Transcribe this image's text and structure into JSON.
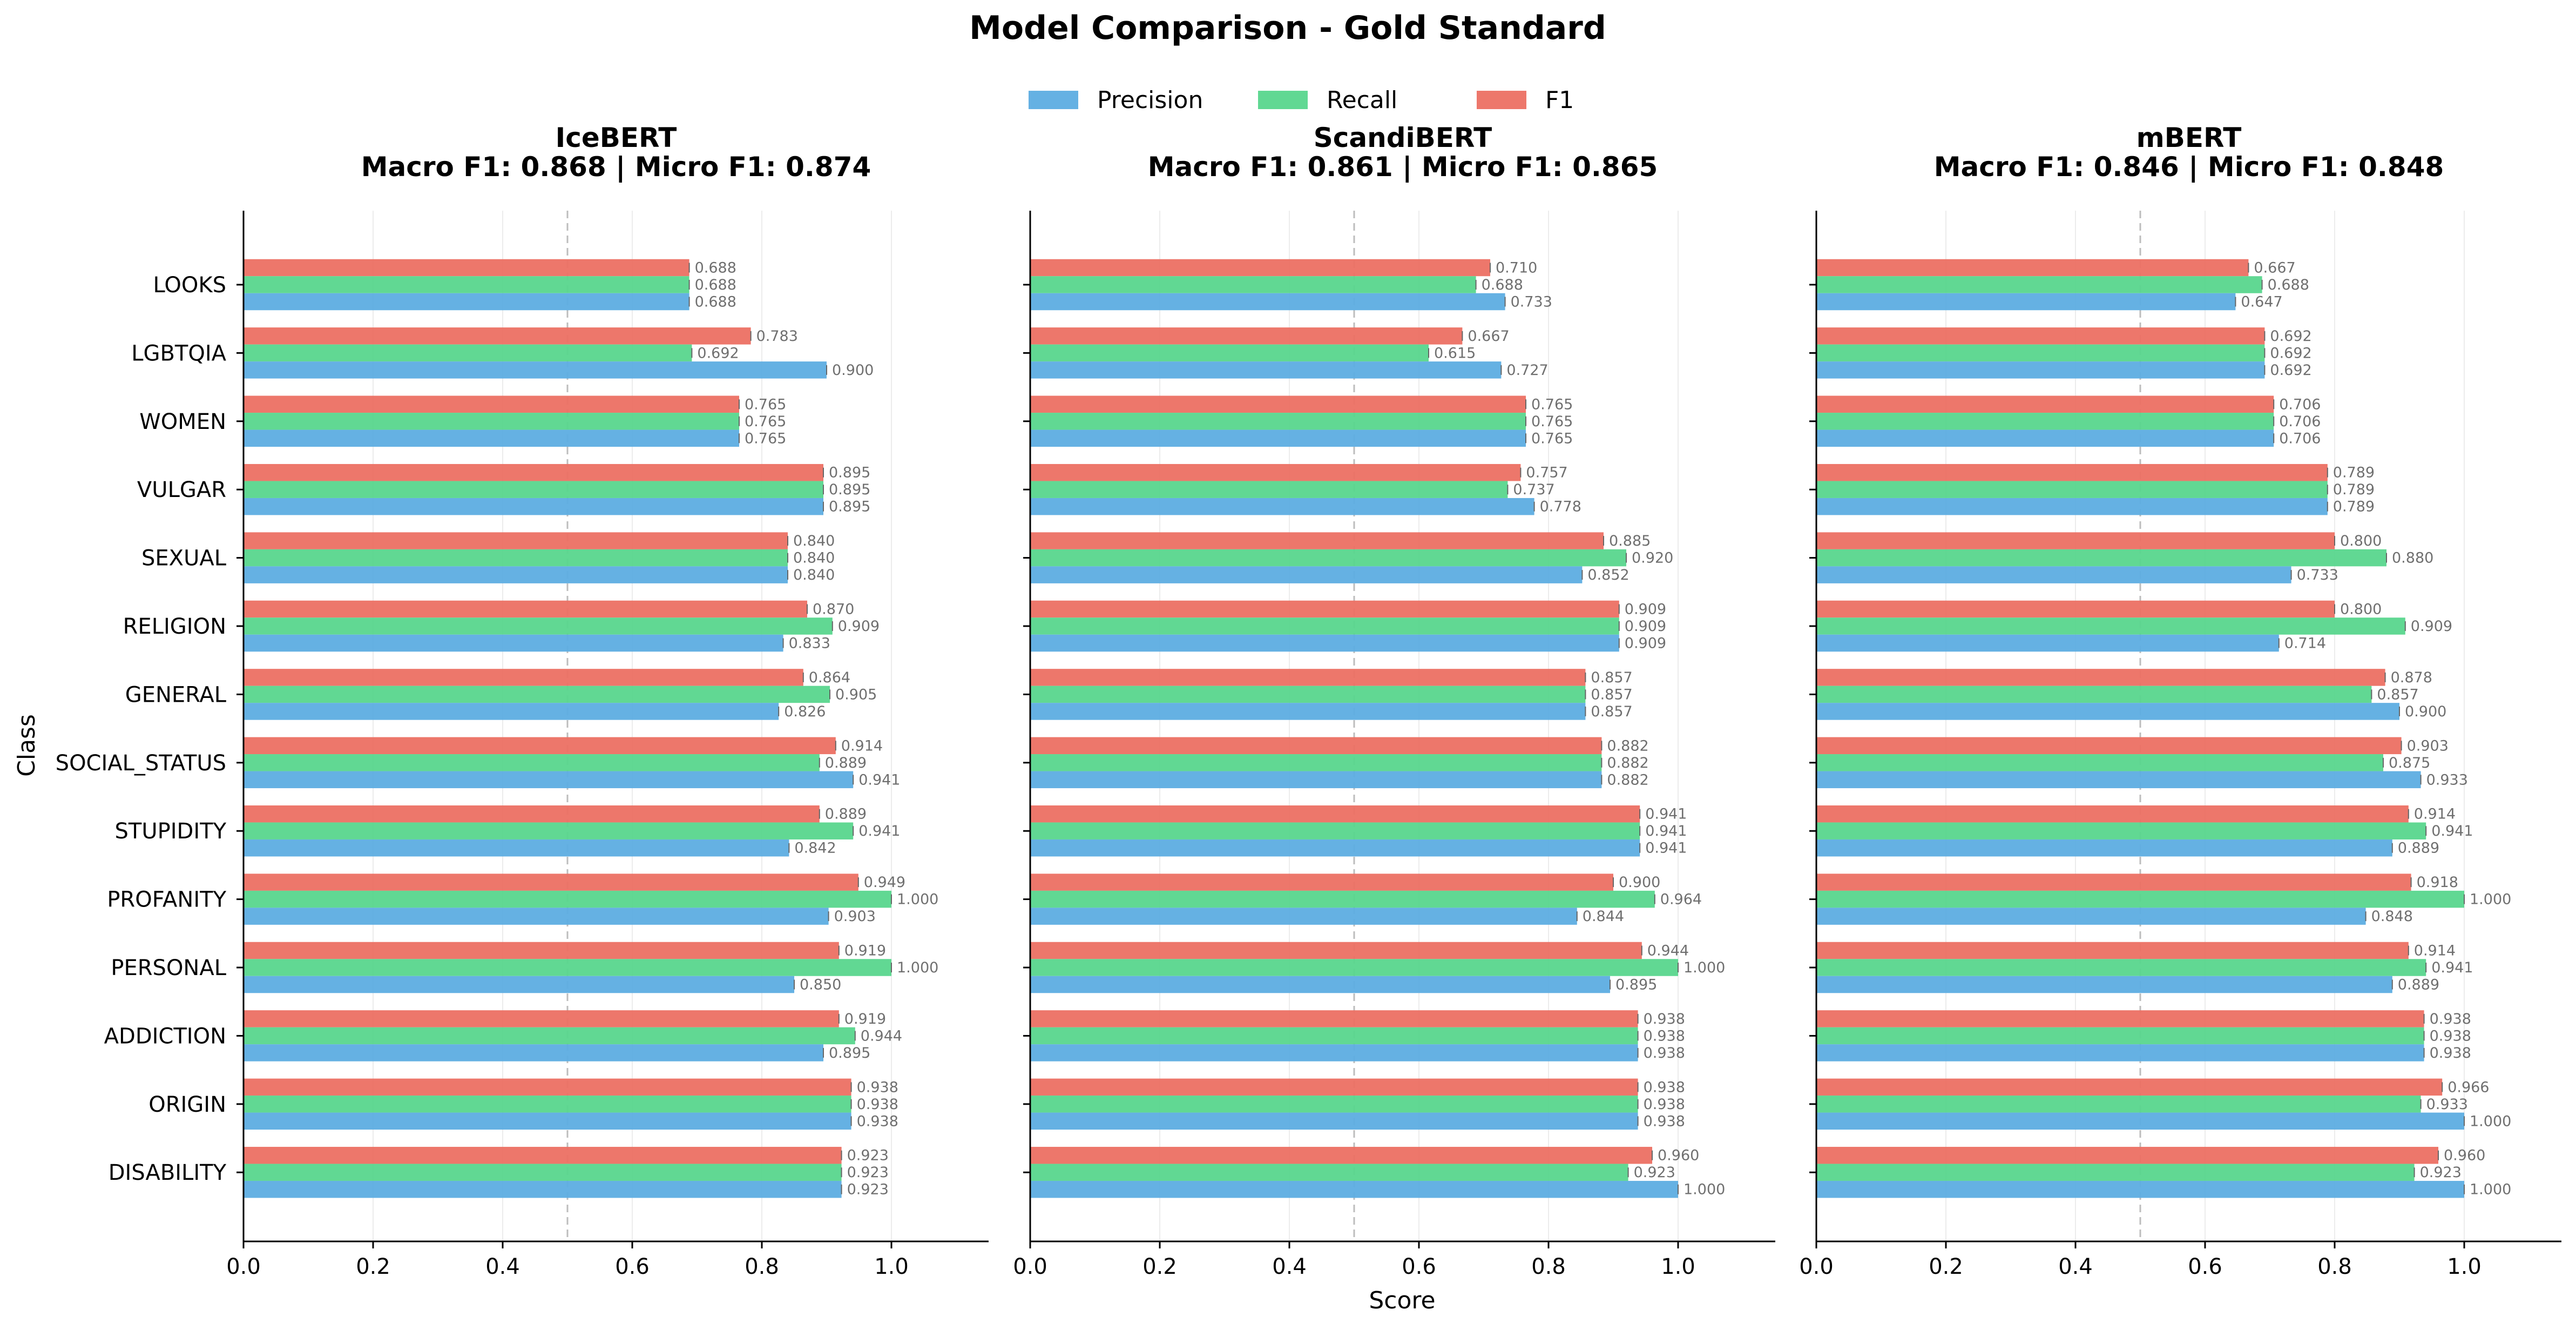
{
  "figure": {
    "title": "Model Comparison - Gold Standard",
    "ylabel": "Class",
    "xlabel": "Score"
  },
  "legend": {
    "position": "top-center",
    "items": [
      {
        "name": "Precision",
        "color": "#5DADE2"
      },
      {
        "name": "Recall",
        "color": "#58D68D"
      },
      {
        "name": "F1",
        "color": "#EC7063"
      }
    ]
  },
  "chart_data": [
    {
      "type": "bar",
      "orientation": "horizontal",
      "model": "IceBERT",
      "title_line1": "IceBERT",
      "title_line2": "Macro F1: 0.868 | Micro F1: 0.874",
      "xlim": [
        0,
        1.15
      ],
      "xticks": [
        "0.0",
        "0.2",
        "0.4",
        "0.6",
        "0.8",
        "1.0"
      ],
      "reference_line": 0.5,
      "categories": [
        "LOOKS",
        "LGBTQIA",
        "WOMEN",
        "VULGAR",
        "SEXUAL",
        "RELIGION",
        "GENERAL",
        "SOCIAL_STATUS",
        "STUPIDITY",
        "PROFANITY",
        "PERSONAL",
        "ADDICTION",
        "ORIGIN",
        "DISABILITY"
      ],
      "series": [
        {
          "name": "Precision",
          "values": [
            0.688,
            0.9,
            0.765,
            0.895,
            0.84,
            0.833,
            0.826,
            0.941,
            0.842,
            0.903,
            0.85,
            0.895,
            0.938,
            0.923
          ]
        },
        {
          "name": "Recall",
          "values": [
            0.688,
            0.692,
            0.765,
            0.895,
            0.84,
            0.909,
            0.905,
            0.889,
            0.941,
            1.0,
            1.0,
            0.944,
            0.938,
            0.923
          ]
        },
        {
          "name": "F1",
          "values": [
            0.688,
            0.783,
            0.765,
            0.895,
            0.84,
            0.87,
            0.864,
            0.914,
            0.889,
            0.949,
            0.919,
            0.919,
            0.938,
            0.923
          ]
        }
      ]
    },
    {
      "type": "bar",
      "orientation": "horizontal",
      "model": "ScandiBERT",
      "title_line1": "ScandiBERT",
      "title_line2": "Macro F1: 0.861 | Micro F1: 0.865",
      "xlim": [
        0,
        1.15
      ],
      "xticks": [
        "0.0",
        "0.2",
        "0.4",
        "0.6",
        "0.8",
        "1.0"
      ],
      "reference_line": 0.5,
      "categories": [
        "LOOKS",
        "LGBTQIA",
        "WOMEN",
        "VULGAR",
        "SEXUAL",
        "RELIGION",
        "GENERAL",
        "SOCIAL_STATUS",
        "STUPIDITY",
        "PROFANITY",
        "PERSONAL",
        "ADDICTION",
        "ORIGIN",
        "DISABILITY"
      ],
      "series": [
        {
          "name": "Precision",
          "values": [
            0.733,
            0.727,
            0.765,
            0.778,
            0.852,
            0.909,
            0.857,
            0.882,
            0.941,
            0.844,
            0.895,
            0.938,
            0.938,
            1.0
          ]
        },
        {
          "name": "Recall",
          "values": [
            0.688,
            0.615,
            0.765,
            0.737,
            0.92,
            0.909,
            0.857,
            0.882,
            0.941,
            0.964,
            1.0,
            0.938,
            0.938,
            0.923
          ]
        },
        {
          "name": "F1",
          "values": [
            0.71,
            0.667,
            0.765,
            0.757,
            0.885,
            0.909,
            0.857,
            0.882,
            0.941,
            0.9,
            0.944,
            0.938,
            0.938,
            0.96
          ]
        }
      ]
    },
    {
      "type": "bar",
      "orientation": "horizontal",
      "model": "mBERT",
      "title_line1": "mBERT",
      "title_line2": "Macro F1: 0.846 | Micro F1: 0.848",
      "xlim": [
        0,
        1.15
      ],
      "xticks": [
        "0.0",
        "0.2",
        "0.4",
        "0.6",
        "0.8",
        "1.0"
      ],
      "reference_line": 0.5,
      "categories": [
        "LOOKS",
        "LGBTQIA",
        "WOMEN",
        "VULGAR",
        "SEXUAL",
        "RELIGION",
        "GENERAL",
        "SOCIAL_STATUS",
        "STUPIDITY",
        "PROFANITY",
        "PERSONAL",
        "ADDICTION",
        "ORIGIN",
        "DISABILITY"
      ],
      "series": [
        {
          "name": "Precision",
          "values": [
            0.647,
            0.692,
            0.706,
            0.789,
            0.733,
            0.714,
            0.9,
            0.933,
            0.889,
            0.848,
            0.889,
            0.938,
            1.0,
            1.0
          ]
        },
        {
          "name": "Recall",
          "values": [
            0.688,
            0.692,
            0.706,
            0.789,
            0.88,
            0.909,
            0.857,
            0.875,
            0.941,
            1.0,
            0.941,
            0.938,
            0.933,
            0.923
          ]
        },
        {
          "name": "F1",
          "values": [
            0.667,
            0.692,
            0.706,
            0.789,
            0.8,
            0.8,
            0.878,
            0.903,
            0.914,
            0.918,
            0.914,
            0.938,
            0.966,
            0.96
          ]
        }
      ]
    }
  ]
}
